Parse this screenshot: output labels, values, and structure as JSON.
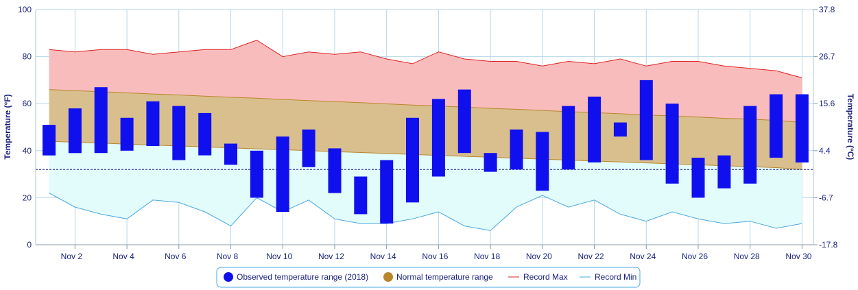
{
  "chart_data": {
    "type": "bar",
    "y_axis_left": {
      "label": "Temperature (°F)",
      "ticks": [
        "0",
        "20",
        "40",
        "60",
        "80",
        "100"
      ],
      "ylim": [
        0,
        100
      ]
    },
    "y_axis_right": {
      "label": "Temperature (°C)",
      "ticks": [
        "-17.8",
        "-6.7",
        "4.4",
        "15.6",
        "26.7",
        "37.8"
      ]
    },
    "x_axis": {
      "ticks": [
        "Nov 2",
        "Nov 4",
        "Nov 6",
        "Nov 8",
        "Nov 10",
        "Nov 12",
        "Nov 14",
        "Nov 16",
        "Nov 18",
        "Nov 20",
        "Nov 22",
        "Nov 24",
        "Nov 26",
        "Nov 28",
        "Nov 30"
      ],
      "day_range": [
        1,
        30
      ]
    },
    "freezing_line_f": 32,
    "grid": true,
    "legend_position": "bottom",
    "legend": [
      {
        "label": "Observed temperature range (2018)",
        "symbol": "dot",
        "color": "#1010ee"
      },
      {
        "label": "Normal temperature range",
        "symbol": "dot",
        "color": "#b8862b"
      },
      {
        "label": "Record Max",
        "symbol": "line",
        "color": "#dd2222"
      },
      {
        "label": "Record Min",
        "symbol": "line",
        "color": "#4aa8e0"
      }
    ],
    "days": [
      1,
      2,
      3,
      4,
      5,
      6,
      7,
      8,
      9,
      10,
      11,
      12,
      13,
      14,
      15,
      16,
      17,
      18,
      19,
      20,
      21,
      22,
      23,
      24,
      25,
      26,
      27,
      28,
      29,
      30
    ],
    "series": [
      {
        "name": "Observed temperature range (2018)",
        "low": [
          38,
          39,
          39,
          40,
          42,
          36,
          38,
          34,
          20,
          14,
          33,
          22,
          13,
          9,
          18,
          29,
          39,
          31,
          32,
          23,
          32,
          35,
          46,
          36,
          26,
          20,
          24,
          26,
          37,
          35
        ],
        "high": [
          51,
          58,
          67,
          54,
          61,
          59,
          56,
          43,
          40,
          46,
          49,
          41,
          29,
          36,
          54,
          62,
          66,
          39,
          49,
          48,
          59,
          63,
          52,
          70,
          60,
          37,
          38,
          59,
          64,
          64
        ]
      },
      {
        "name": "Normal temperature range",
        "low": [
          44,
          43.6,
          43.2,
          42.8,
          42.4,
          42,
          41.6,
          41.2,
          40.8,
          40.4,
          40,
          39.6,
          39.2,
          38.8,
          38.4,
          38,
          37.6,
          37.2,
          36.8,
          36.4,
          36,
          35.6,
          35.2,
          34.8,
          34.4,
          34,
          33.6,
          33.2,
          32.8,
          32
        ],
        "high": [
          66,
          65.5,
          65.1,
          64.6,
          64.1,
          63.7,
          63.2,
          62.7,
          62.3,
          61.8,
          61.3,
          60.9,
          60.4,
          59.9,
          59.4,
          59,
          58.5,
          58,
          57.6,
          57.1,
          56.6,
          56.2,
          55.7,
          55.2,
          54.8,
          54.3,
          53.8,
          53.4,
          52.9,
          52
        ]
      },
      {
        "name": "Record Max",
        "values": [
          83,
          82,
          83,
          83,
          81,
          82,
          83,
          83,
          87,
          80,
          82,
          81,
          82,
          79,
          77,
          82,
          79,
          78,
          78,
          76,
          78,
          77,
          79,
          76,
          78,
          78,
          76,
          75,
          74,
          71
        ]
      },
      {
        "name": "Record Min",
        "values": [
          22,
          16,
          13,
          11,
          19,
          18,
          14,
          8,
          20,
          14,
          19,
          11,
          9,
          9,
          11,
          14,
          8,
          6,
          16,
          21,
          16,
          19,
          13,
          10,
          14,
          11,
          9,
          10,
          7,
          9
        ]
      }
    ]
  }
}
